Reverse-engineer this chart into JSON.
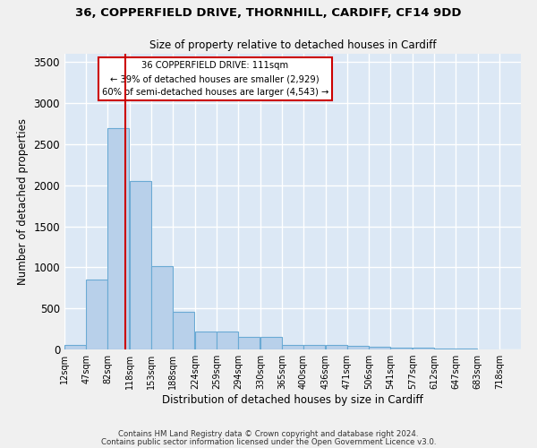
{
  "title1": "36, COPPERFIELD DRIVE, THORNHILL, CARDIFF, CF14 9DD",
  "title2": "Size of property relative to detached houses in Cardiff",
  "xlabel": "Distribution of detached houses by size in Cardiff",
  "ylabel": "Number of detached properties",
  "bin_edges": [
    12,
    47,
    82,
    118,
    153,
    188,
    224,
    259,
    294,
    330,
    365,
    400,
    436,
    471,
    506,
    541,
    577,
    612,
    647,
    683,
    718
  ],
  "bar_heights": [
    50,
    850,
    2700,
    2050,
    1020,
    460,
    220,
    220,
    150,
    150,
    60,
    60,
    50,
    40,
    30,
    20,
    20,
    10,
    10,
    5
  ],
  "bar_color": "#b8d0ea",
  "bar_edgecolor": "#6aaad4",
  "property_size": 111,
  "redline_color": "#cc0000",
  "annotation_line1": "36 COPPERFIELD DRIVE: 111sqm",
  "annotation_line2": "← 39% of detached houses are smaller (2,929)",
  "annotation_line3": "60% of semi-detached houses are larger (4,543) →",
  "annotation_box_edgecolor": "#cc0000",
  "annotation_box_facecolor": "#ffffff",
  "ylim": [
    0,
    3600
  ],
  "yticks": [
    0,
    500,
    1000,
    1500,
    2000,
    2500,
    3000,
    3500
  ],
  "background_color": "#dce8f5",
  "grid_color": "#ffffff",
  "footer1": "Contains HM Land Registry data © Crown copyright and database right 2024.",
  "footer2": "Contains public sector information licensed under the Open Government Licence v3.0."
}
